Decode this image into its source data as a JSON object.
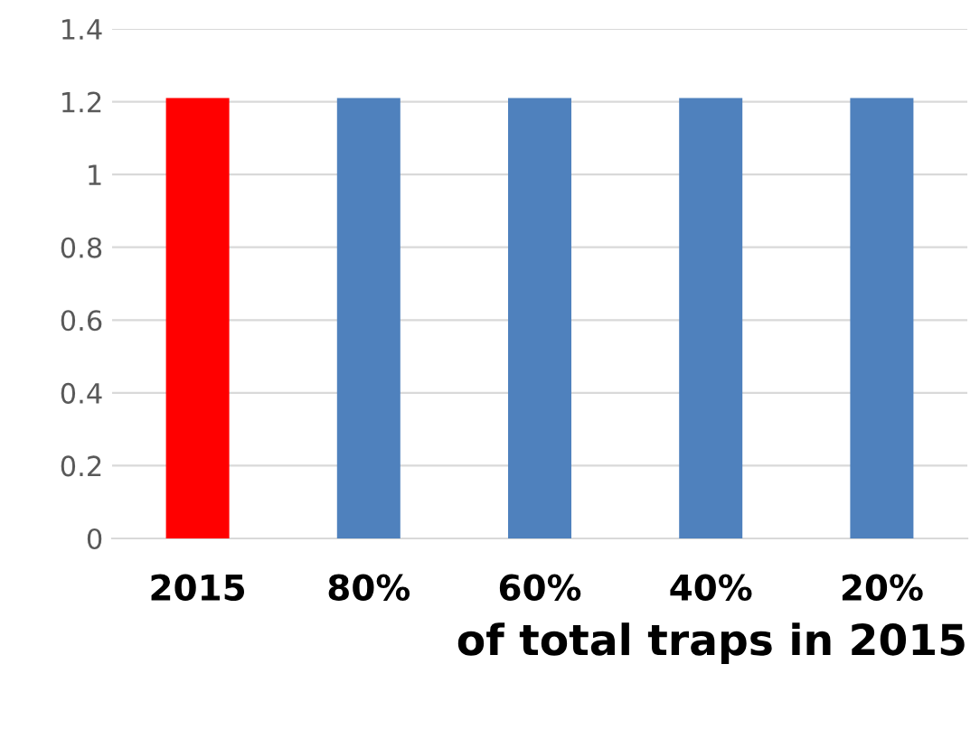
{
  "chart_data": {
    "type": "bar",
    "xlabel": "of total traps in 2015",
    "categories": [
      "2015",
      "80%",
      "60%",
      "40%",
      "20%"
    ],
    "values": [
      1.21,
      1.21,
      1.21,
      1.21,
      1.21
    ],
    "colors": [
      "#ff0000",
      "#4f81bd",
      "#4f81bd",
      "#4f81bd",
      "#4f81bd"
    ],
    "ylim": [
      0,
      1.4
    ],
    "yticks": [
      0,
      0.2,
      0.4,
      0.6,
      0.8,
      1,
      1.2,
      1.4
    ],
    "grid": "y",
    "legend": false
  }
}
